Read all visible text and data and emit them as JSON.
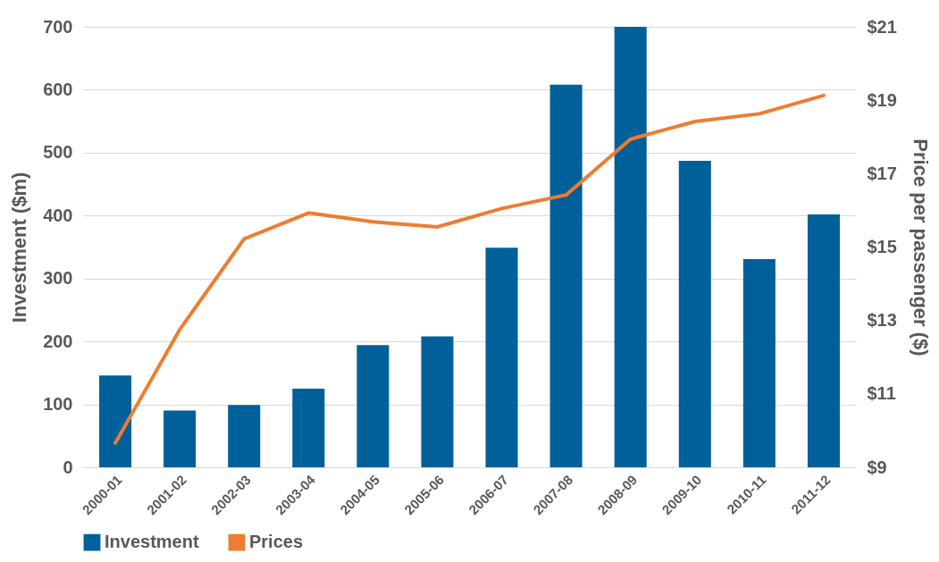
{
  "chart_data": {
    "type": "bar",
    "categories": [
      "2000-01",
      "2001-02",
      "2002-03",
      "2003-04",
      "2004-05",
      "2005-06",
      "2006-07",
      "2007-08",
      "2008-09",
      "2009-10",
      "2010-11",
      "2011-12"
    ],
    "series": [
      {
        "name": "Investment",
        "color": "#00609a",
        "values": [
          146,
          90,
          99,
          125,
          194,
          208,
          349,
          608,
          700,
          487,
          331,
          402
        ]
      },
      {
        "name": "Prices",
        "type": "line",
        "axis": "y2",
        "color": "#ed7d31",
        "values": [
          9.66,
          12.75,
          15.22,
          15.93,
          15.69,
          15.55,
          16.05,
          16.42,
          17.94,
          18.42,
          18.63,
          19.13
        ]
      }
    ],
    "ylabel": "Investment ($m)",
    "y2label": "Price per passenger ($)",
    "ylim": [
      0,
      700
    ],
    "yticks": [
      0,
      100,
      200,
      300,
      400,
      500,
      600,
      700
    ],
    "y2lim": [
      9,
      21
    ],
    "y2ticks": [
      {
        "value": 9,
        "label": "$9"
      },
      {
        "value": 11,
        "label": "$11"
      },
      {
        "value": 13,
        "label": "$13"
      },
      {
        "value": 15,
        "label": "$15"
      },
      {
        "value": 17,
        "label": "$17"
      },
      {
        "value": 19,
        "label": "$19"
      },
      {
        "value": 21,
        "label": "$21"
      }
    ],
    "grid": "y",
    "legend": "bottom",
    "marker": "none",
    "line_style": "solid"
  }
}
